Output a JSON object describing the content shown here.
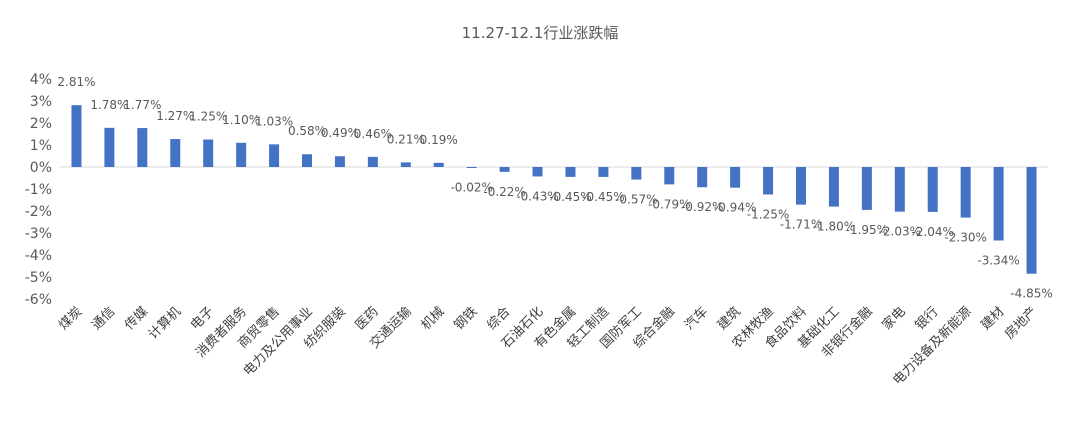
{
  "chart_data": {
    "type": "bar",
    "title": "11.27-12.1行业涨跌幅",
    "xlabel": "",
    "ylabel": "",
    "ylim": [
      -6,
      4
    ],
    "yticks": [
      "-6%",
      "-5%",
      "-4%",
      "-3%",
      "-2%",
      "-1%",
      "0%",
      "1%",
      "2%",
      "3%",
      "4%"
    ],
    "color": "#4472C4",
    "grid": false,
    "categories": [
      "煤炭",
      "通信",
      "传媒",
      "计算机",
      "电子",
      "消费者服务",
      "商贸零售",
      "电力及公用事业",
      "纺织服装",
      "医药",
      "交通运输",
      "机械",
      "钢铁",
      "综合",
      "石油石化",
      "有色金属",
      "轻工制造",
      "国防军工",
      "综合金融",
      "汽车",
      "建筑",
      "农林牧渔",
      "食品饮料",
      "基础化工",
      "非银行金融",
      "家电",
      "银行",
      "电力设备及新能源",
      "建材",
      "房地产"
    ],
    "values": [
      2.81,
      1.78,
      1.77,
      1.27,
      1.25,
      1.1,
      1.03,
      0.58,
      0.49,
      0.46,
      0.21,
      0.19,
      -0.02,
      -0.22,
      -0.43,
      -0.45,
      -0.45,
      -0.57,
      -0.79,
      -0.92,
      -0.94,
      -1.25,
      -1.71,
      -1.8,
      -1.95,
      -2.03,
      -2.04,
      -2.3,
      -3.34,
      -4.85
    ],
    "labels": [
      "2.81%",
      "1.78%",
      "1.77%",
      "1.27%",
      "1.25%",
      "1.10%",
      "1.03%",
      "0.58%",
      "0.49%",
      "0.46%",
      "0.21%",
      "0.19%",
      "-0.02%",
      "-0.22%",
      "-0.43%",
      "-0.45%",
      "-0.45%",
      "-0.57%",
      "-0.79%",
      "-0.92%",
      "-0.94%",
      "-1.25%",
      "-1.71%",
      "-1.80%",
      "-1.95%",
      "-2.03%",
      "-2.04%",
      "-2.30%",
      "-3.34%",
      "-4.85%"
    ]
  }
}
